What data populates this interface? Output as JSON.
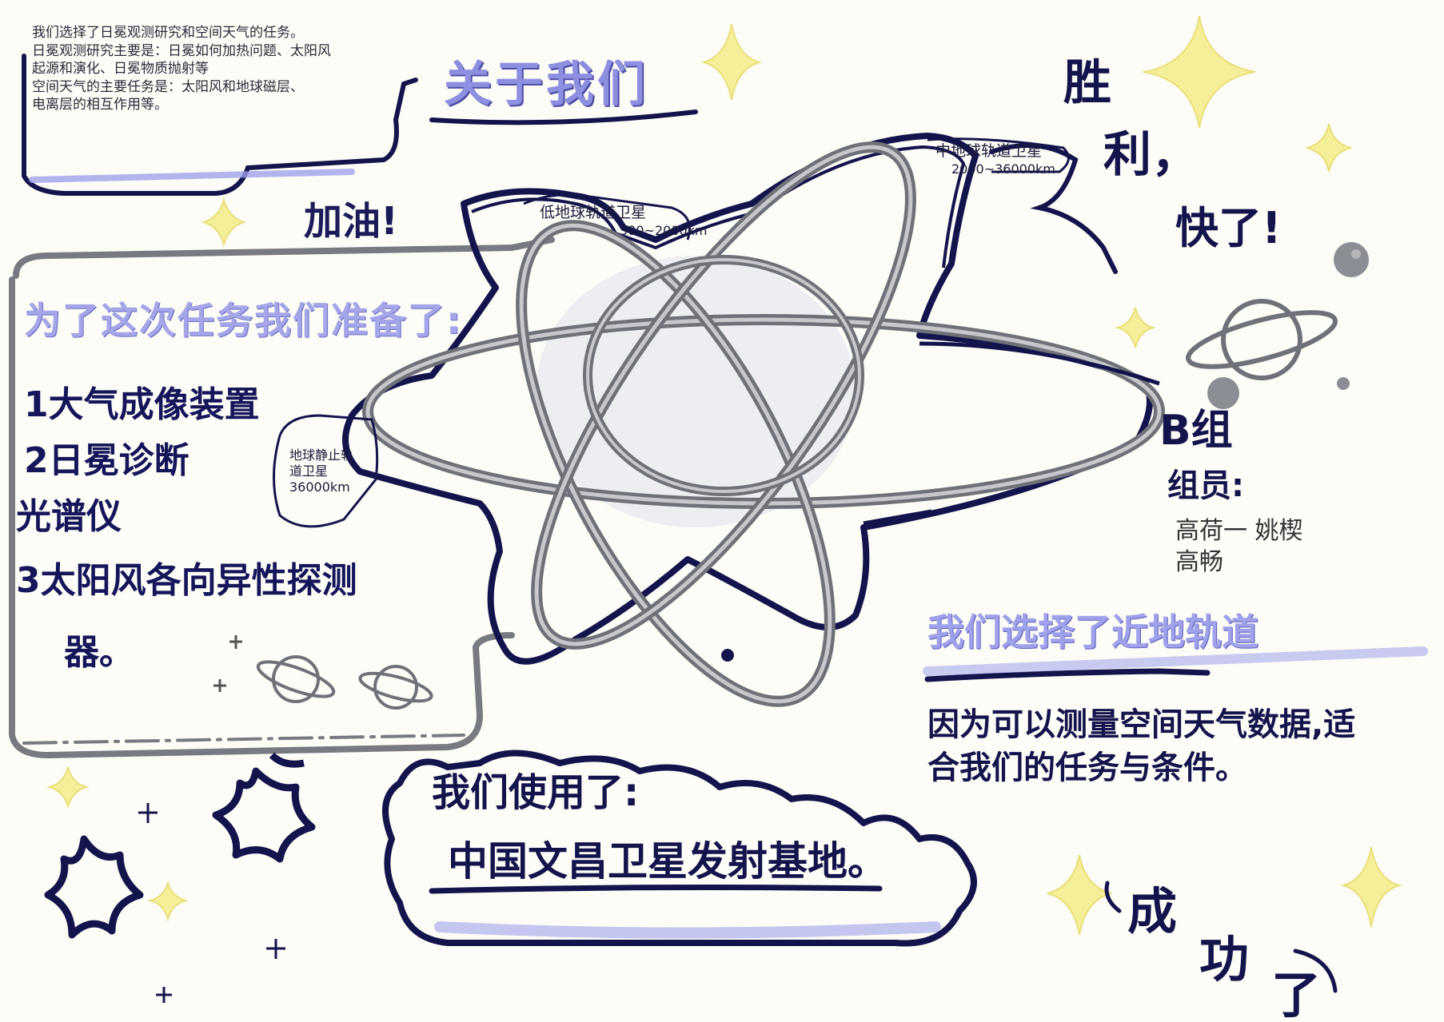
{
  "about": {
    "title": "关于我们",
    "lines": [
      "我们选择了日冕观测研究和空间天气的任务。",
      "日冕观测研究主要是：日冕如何加热问题、太阳风",
      "起源和演化、日冕物质抛射等",
      "空间天气的主要任务是：太阳风和地球磁层、",
      "电离层的相互作用等。"
    ]
  },
  "cheer": "加油!",
  "mission": {
    "title": "为了这次任务我们准备了:",
    "equipment": [
      "1大气成像装置",
      "2日冕诊断",
      "光谱仪",
      "3太阳风各向异性探测",
      "器。"
    ]
  },
  "orbits": {
    "low_name": "低地球轨道卫星",
    "low_range": "500~2000km",
    "mid_name": "中地球轨道卫星",
    "mid_range": "2000~36000km",
    "geo_name_a": "地球静止轨",
    "geo_name_b": "道卫星",
    "geo_range": "36000km"
  },
  "motto": {
    "line1": "胜",
    "line2": "利，",
    "line3": "快了!"
  },
  "team": {
    "group": "B组",
    "label": "组员:",
    "members_line1": "高荷一 姚楔",
    "members_line2": "高畅"
  },
  "orbit_choice": {
    "title": "我们选择了近地轨道",
    "reason_line1": "因为可以测量空间天气数据,适",
    "reason_line2": "合我们的任务与条件。"
  },
  "base": {
    "line1": "我们使用了:",
    "line2": "中国文昌卫星发射基地。"
  },
  "success": {
    "char1": "成",
    "char2": "功",
    "char3": "了"
  },
  "colors": {
    "ink": "#14144d",
    "lavender": "#a4a6e8",
    "gray_orbit": "#6e7177",
    "star_yellow": "#f5ef9a"
  }
}
